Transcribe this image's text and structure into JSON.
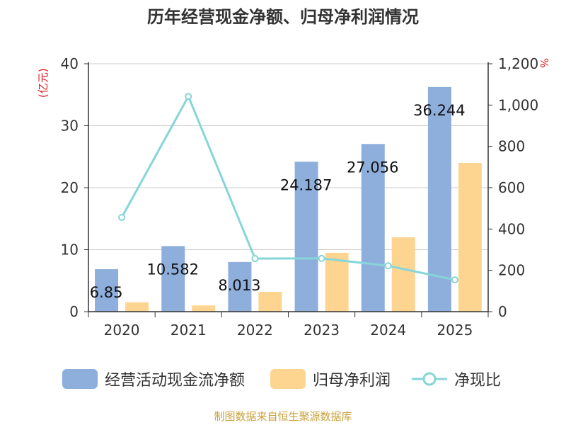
{
  "title": "历年经营现金净额、归母净利润情况",
  "left_unit": "(亿元)",
  "right_unit": "%",
  "source": "制图数据来自恒生聚源数据库",
  "colors": {
    "cash_flow": "#8eaedc",
    "net_profit": "#fdd591",
    "ratio": "#86d5d8",
    "axis": "#333333",
    "grid": "#cccccc"
  },
  "chart_data": {
    "type": "bar",
    "categories": [
      "2020",
      "2021",
      "2022",
      "2023",
      "2024",
      "2025"
    ],
    "series": [
      {
        "name": "经营活动现金流净额",
        "axis": "left",
        "values": [
          6.85,
          10.582,
          8.013,
          24.187,
          27.056,
          36.244
        ],
        "labels": [
          "6.85",
          "10.582",
          "8.013",
          "24.187",
          "27.056",
          "36.244"
        ]
      },
      {
        "name": "归母净利润",
        "axis": "left",
        "values": [
          1.5,
          1.0,
          3.2,
          9.5,
          12.0,
          24.0
        ]
      },
      {
        "name": "净现比",
        "type": "line",
        "axis": "right",
        "values": [
          456,
          1042,
          257,
          258,
          222,
          154
        ]
      }
    ],
    "left_axis": {
      "ylim": [
        0,
        40
      ],
      "ticks": [
        "0",
        "10",
        "20",
        "30",
        "40"
      ]
    },
    "right_axis": {
      "ylim": [
        0,
        1200
      ],
      "ticks": [
        "0",
        "200",
        "400",
        "600",
        "800",
        "1,000",
        "1,200"
      ]
    },
    "legend_position": "bottom",
    "grid": true
  }
}
